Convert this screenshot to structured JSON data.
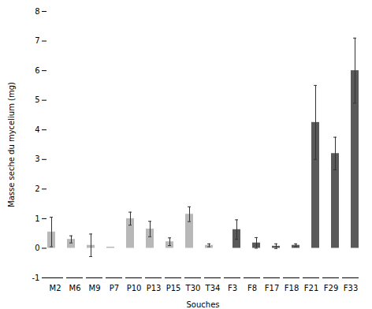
{
  "chart_data": {
    "type": "bar",
    "xlabel": "Souches",
    "ylabel": "Masse seche du mycelium (mg)",
    "categories": [
      "M2",
      "M6",
      "M9",
      "P7",
      "P10",
      "P13",
      "P15",
      "T30",
      "T34",
      "F3",
      "F8",
      "F17",
      "F18",
      "F21",
      "F29",
      "F33"
    ],
    "series": [
      {
        "color": "#b8b8b8",
        "values": [
          0.55,
          0.3,
          0.1,
          0.04,
          1.0,
          0.65,
          0.22,
          1.15,
          0.1,
          0.0,
          0.0,
          0.0,
          0.0,
          0.0,
          0.0,
          0.0
        ],
        "errors": [
          0.5,
          0.12,
          0.38,
          0.0,
          0.22,
          0.26,
          0.13,
          0.25,
          0.05,
          0.0,
          0.0,
          0.0,
          0.0,
          0.0,
          0.0,
          0.0
        ]
      },
      {
        "color": "#595959",
        "values": [
          0.0,
          0.0,
          0.0,
          0.0,
          0.0,
          0.0,
          0.0,
          0.0,
          0.0,
          0.63,
          0.18,
          0.07,
          0.1,
          4.25,
          3.2,
          6.0
        ],
        "errors": [
          0.0,
          0.0,
          0.0,
          0.0,
          0.0,
          0.0,
          0.0,
          0.0,
          0.0,
          0.33,
          0.18,
          0.08,
          0.05,
          1.25,
          0.55,
          1.1
        ]
      }
    ],
    "ylim": [
      -1,
      8
    ],
    "yticks": [
      -1,
      0,
      1,
      2,
      3,
      4,
      5,
      6,
      7,
      8
    ],
    "grid": false
  }
}
